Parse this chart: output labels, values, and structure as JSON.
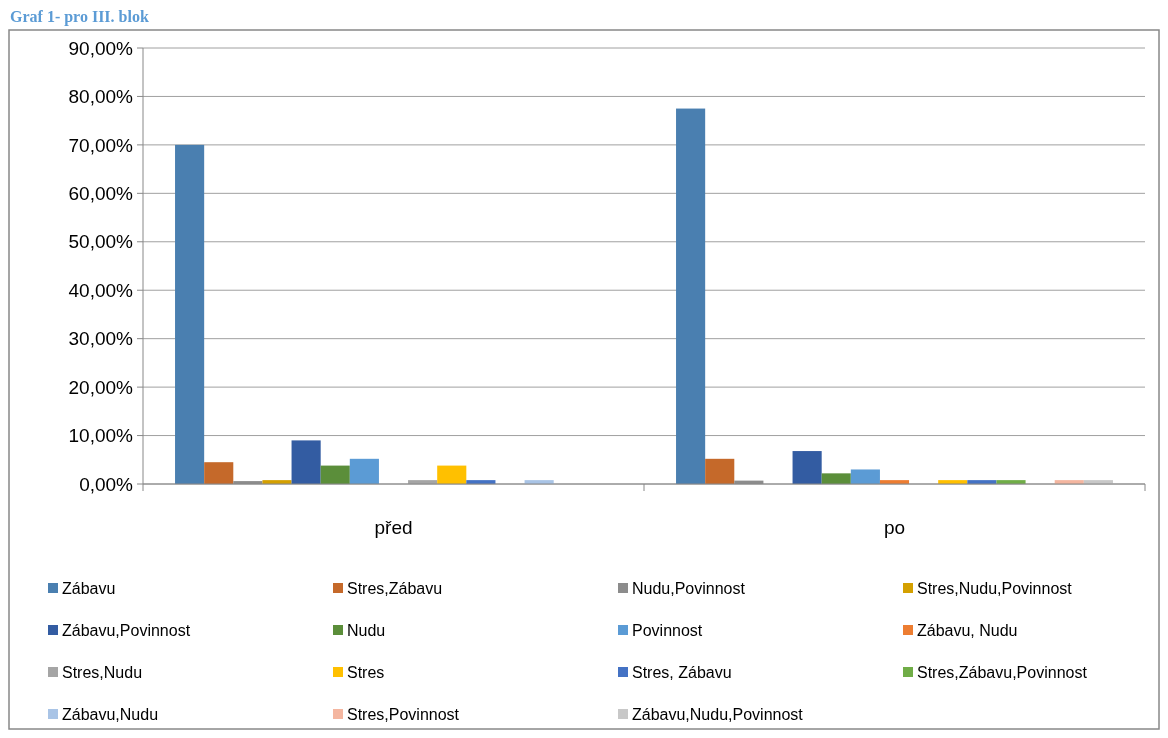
{
  "chart_data": {
    "type": "bar",
    "title": "Graf 1- pro III. blok",
    "categories": [
      "před",
      "po"
    ],
    "series": [
      {
        "name": "Zábavu",
        "color": "#4a7fb0",
        "values": [
          70,
          77.5
        ]
      },
      {
        "name": "Stres,Zábavu",
        "color": "#c5692a",
        "values": [
          4.5,
          5.2
        ]
      },
      {
        "name": "Nudu,Povinnost",
        "color": "#8c8c8c",
        "values": [
          0.6,
          0.7
        ]
      },
      {
        "name": "Stres,Nudu,Povinnost",
        "color": "#d4a000",
        "values": [
          0.8,
          0
        ]
      },
      {
        "name": "Zábavu,Povinnost",
        "color": "#335ca2",
        "values": [
          9.0,
          6.8
        ]
      },
      {
        "name": "Nudu",
        "color": "#5b8e3a",
        "values": [
          3.8,
          2.2
        ]
      },
      {
        "name": "Povinnost",
        "color": "#5b9bd5",
        "values": [
          5.2,
          3.0
        ]
      },
      {
        "name": "Zábavu, Nudu",
        "color": "#ed7d31",
        "values": [
          0,
          0.8
        ]
      },
      {
        "name": "Stres,Nudu",
        "color": "#a5a5a5",
        "values": [
          0.8,
          0
        ]
      },
      {
        "name": "Stres",
        "color": "#ffc000",
        "values": [
          3.8,
          0.8
        ]
      },
      {
        "name": "Stres, Zábavu",
        "color": "#4472c4",
        "values": [
          0.8,
          0.8
        ]
      },
      {
        "name": "Stres,Zábavu,Povinnost",
        "color": "#70ad47",
        "values": [
          0,
          0.8
        ]
      },
      {
        "name": "Zábavu,Nudu",
        "color": "#a9c4e6",
        "values": [
          0.8,
          0
        ]
      },
      {
        "name": "Stres,Povinnost",
        "color": "#f4b6a0",
        "values": [
          0,
          0.8
        ]
      },
      {
        "name": "Zábavu,Nudu,Povinnost",
        "color": "#c8c8c8",
        "values": [
          0,
          0.8
        ]
      }
    ],
    "ylim": [
      0,
      90
    ],
    "yticks": [
      {
        "value": 0,
        "label": "0,00%"
      },
      {
        "value": 10,
        "label": "10,00%"
      },
      {
        "value": 20,
        "label": "20,00%"
      },
      {
        "value": 30,
        "label": "30,00%"
      },
      {
        "value": 40,
        "label": "40,00%"
      },
      {
        "value": 50,
        "label": "50,00%"
      },
      {
        "value": 60,
        "label": "60,00%"
      },
      {
        "value": 70,
        "label": "70,00%"
      },
      {
        "value": 80,
        "label": "80,00%"
      },
      {
        "value": 90,
        "label": "90,00%"
      }
    ],
    "grid": "y",
    "legend": "bottom"
  }
}
